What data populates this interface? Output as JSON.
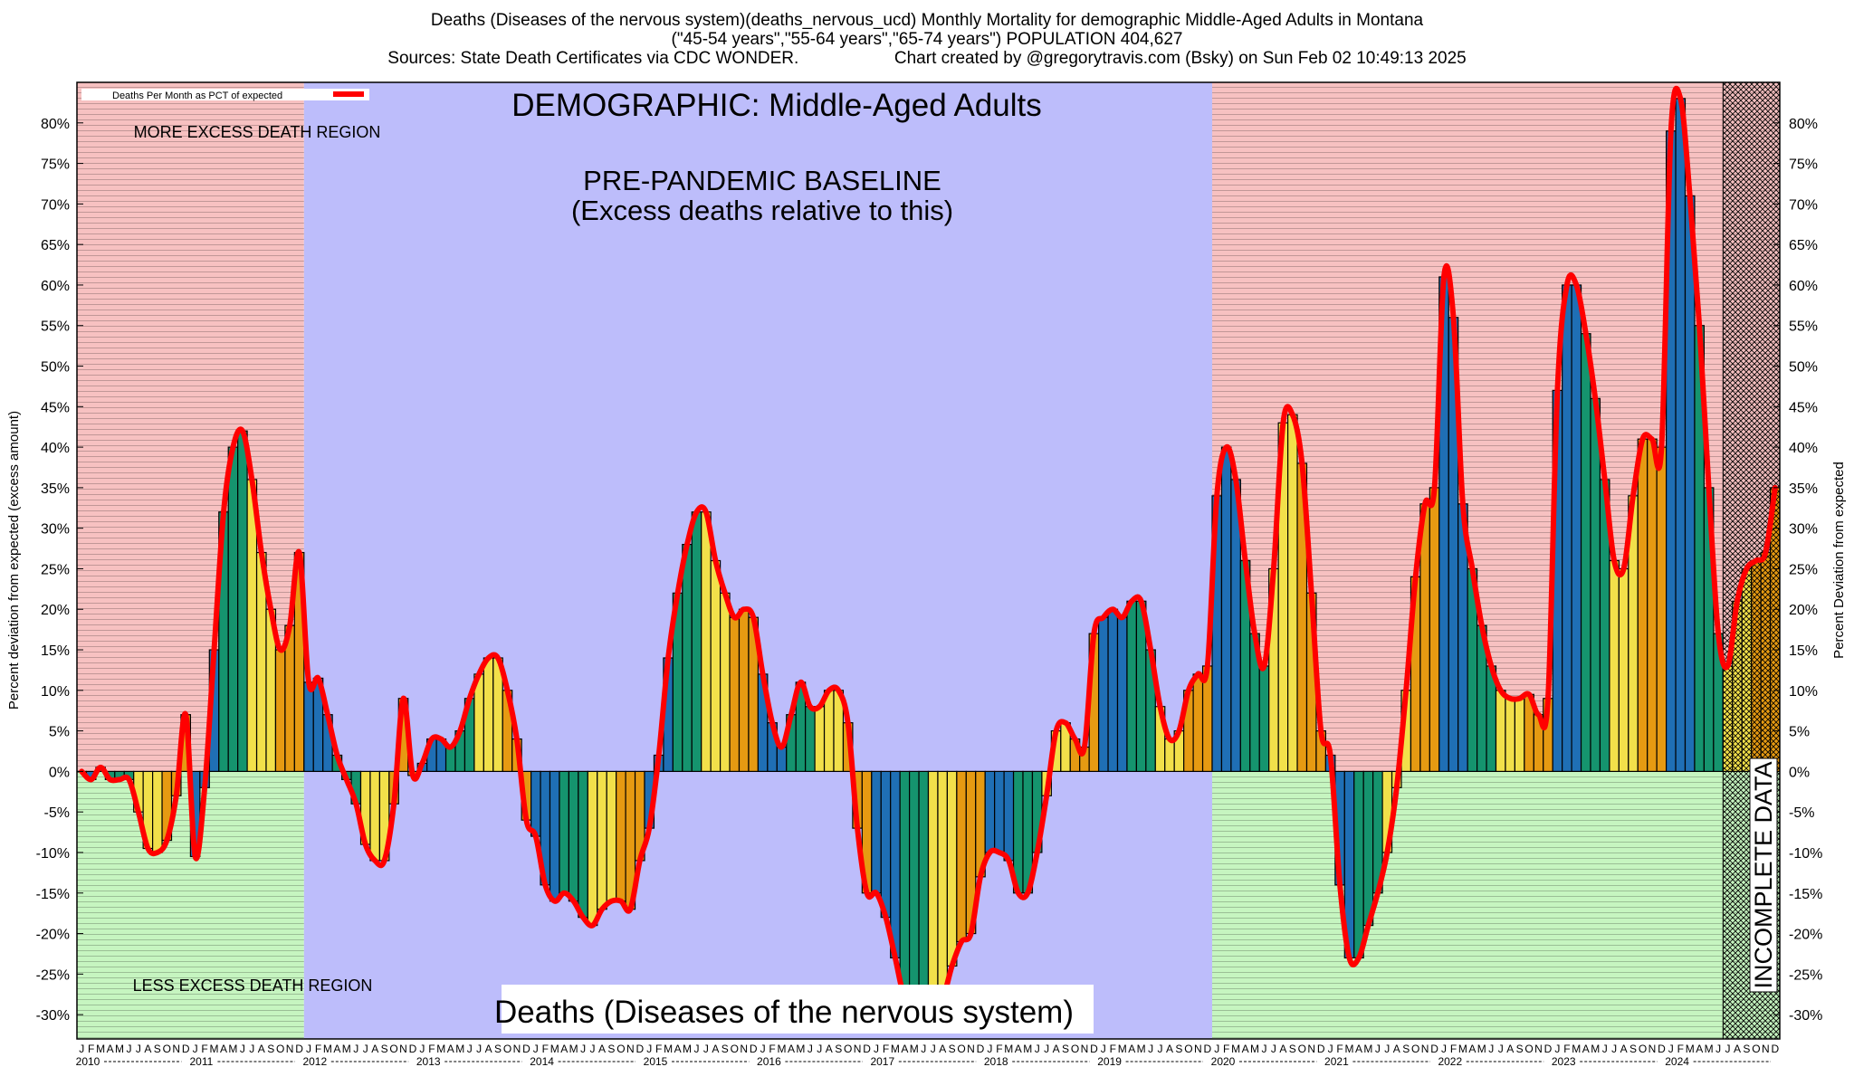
{
  "header": {
    "title": "Deaths (Diseases of the nervous system)(deaths_nervous_ucd) Monthly Mortality for demographic Middle-Aged Adults in Montana",
    "subtitle": "(\"45-54 years\",\"55-64 years\",\"65-74 years\") POPULATION 404,627",
    "sources": "Sources: State Death Certificates via CDC WONDER.                    Chart created by @gregorytravis.com (Bsky) on Sun Feb 02 10:49:13 2025"
  },
  "chart_data": {
    "type": "bar",
    "demographic_label": "DEMOGRAPHIC: Middle-Aged Adults",
    "baseline_label_1": "PRE-PANDEMIC BASELINE",
    "baseline_label_2": "(Excess deaths relative to this)",
    "more_excess_label": "MORE EXCESS DEATH REGION",
    "less_excess_label": "LESS EXCESS DEATH REGION",
    "bottom_label": "Deaths (Diseases of the nervous system)",
    "incomplete_label": "INCOMPLETE DATA",
    "legend_label": "Deaths Per Month as PCT of expected",
    "ylabel_left": "Percent deviation from expected (excess amount)",
    "ylabel_right": "Percent Deviation from expected",
    "ylim": [
      -33,
      85
    ],
    "yticks": [
      -30,
      -25,
      -20,
      -15,
      -10,
      -5,
      0,
      5,
      10,
      15,
      20,
      25,
      30,
      35,
      40,
      45,
      50,
      55,
      60,
      65,
      70,
      75,
      80
    ],
    "ytick_labels": [
      "-30%",
      "-25%",
      "-20%",
      "-15%",
      "-10%",
      "-5%",
      "0%",
      "5%",
      "10%",
      "15%",
      "20%",
      "25%",
      "30%",
      "35%",
      "40%",
      "45%",
      "50%",
      "55%",
      "60%",
      "65%",
      "70%",
      "75%",
      "80%"
    ],
    "month_letters": [
      "J",
      "F",
      "M",
      "A",
      "M",
      "J",
      "J",
      "A",
      "S",
      "O",
      "N",
      "D"
    ],
    "years": [
      "2010",
      "2011",
      "2012",
      "2013",
      "2014",
      "2015",
      "2016",
      "2017",
      "2018",
      "2019",
      "2020",
      "2021",
      "2022",
      "2023",
      "2024"
    ],
    "start": "2010-01",
    "baseline_period": [
      "2012-01",
      "2019-12"
    ],
    "incomplete_period": [
      "2024-07",
      "2024-12"
    ],
    "series_colors": [
      "#1f6fb5",
      "#15946e",
      "#f2e04a",
      "#e69a12"
    ],
    "colors": {
      "more_region": "#f7c1c1",
      "less_region": "#c6f5c0",
      "baseline_region": "#bdbdfb",
      "line": "#ff0000"
    },
    "values": [
      0,
      -1,
      0.5,
      -1,
      -1,
      -1,
      -5,
      -9.5,
      -10,
      -8.5,
      -3,
      7,
      -10.5,
      -2,
      15,
      32,
      40,
      42,
      36,
      27,
      20,
      15,
      18,
      27,
      11,
      11.5,
      7,
      2,
      -1,
      -4,
      -9,
      -11,
      -11,
      -4,
      9,
      -0.5,
      1,
      4,
      4,
      3,
      5,
      9,
      12,
      14,
      14,
      10,
      4,
      -6,
      -8,
      -14,
      -16,
      -15,
      -16,
      -18,
      -19,
      -17,
      -16,
      -16,
      -17,
      -11,
      -7,
      2,
      14,
      22,
      28,
      32,
      32,
      26,
      22,
      19,
      20,
      19,
      12,
      6,
      3,
      7,
      11,
      8,
      8,
      10,
      10,
      6,
      -7,
      -15,
      -15,
      -18,
      -23,
      -28,
      -28,
      -28,
      -28,
      -28,
      -24,
      -21,
      -20,
      -13,
      -10,
      -10,
      -11,
      -15,
      -15,
      -10,
      -3,
      5,
      6,
      4,
      3,
      17,
      19,
      20,
      19,
      21,
      21,
      15,
      8,
      4,
      5,
      10,
      12,
      13,
      34,
      40,
      36,
      26,
      17,
      13,
      25,
      43,
      44,
      38,
      22,
      5,
      2,
      -14,
      -23,
      -23,
      -19,
      -15,
      -10,
      -2,
      10,
      24,
      33,
      35,
      61,
      56,
      33,
      25,
      18,
      13,
      10,
      9,
      9,
      9.5,
      7,
      9,
      47,
      60,
      60,
      54,
      46,
      36,
      26,
      25,
      34,
      41,
      41,
      40,
      79,
      83,
      71,
      55,
      35,
      17,
      13,
      21,
      25,
      26,
      27,
      35
    ]
  }
}
